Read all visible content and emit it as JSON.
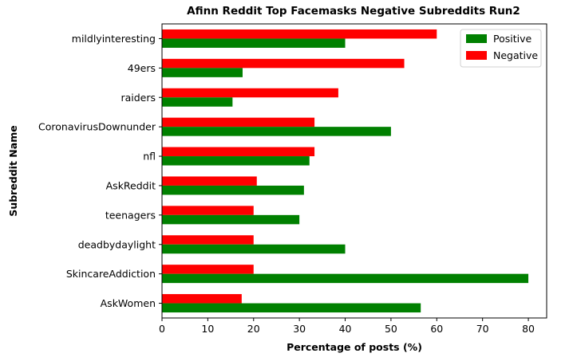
{
  "chart_data": {
    "type": "bar",
    "orientation": "horizontal",
    "title": "Afinn Reddit Top Facemasks Negative Subreddits Run2",
    "xlabel": "Percentage of posts (%)",
    "ylabel": "Subreddit Name",
    "xlim": [
      0,
      84
    ],
    "xticks": [
      "0",
      "10",
      "20",
      "30",
      "40",
      "50",
      "60",
      "70",
      "80"
    ],
    "categories": [
      "mildlyinteresting",
      "49ers",
      "raiders",
      "CoronavirusDownunder",
      "nfl",
      "AskReddit",
      "teenagers",
      "deadbydaylight",
      "SkincareAddiction",
      "AskWomen"
    ],
    "series": [
      {
        "name": "Positive",
        "color": "#008000",
        "values": [
          40,
          17.6,
          15.4,
          50,
          32.2,
          31,
          30,
          40,
          80,
          56.5
        ]
      },
      {
        "name": "Negative",
        "color": "#ff0000",
        "values": [
          60,
          52.9,
          38.5,
          33.3,
          33.3,
          20.7,
          20,
          20,
          20,
          17.4
        ]
      }
    ],
    "legend_position": "top-right",
    "grid": false
  }
}
